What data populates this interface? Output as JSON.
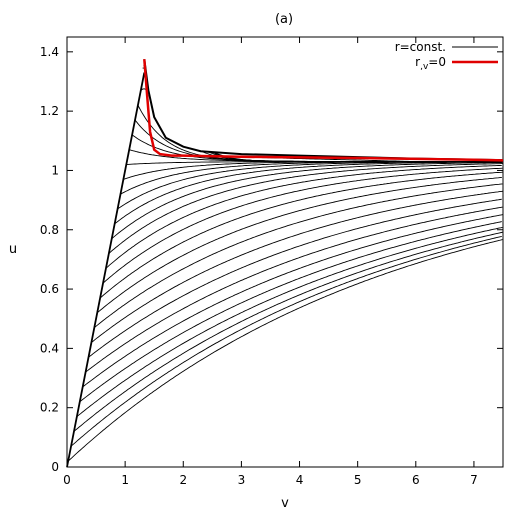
{
  "chart_data": {
    "type": "line",
    "title": "(a)",
    "xlabel": "v",
    "ylabel": "u",
    "xlim": [
      0,
      7.5
    ],
    "ylim": [
      0,
      1.45
    ],
    "xticks": [
      0,
      1,
      2,
      3,
      4,
      5,
      6,
      7
    ],
    "yticks": [
      0,
      0.2,
      0.4,
      0.6,
      0.8,
      1,
      1.2,
      1.4
    ],
    "xtick_labels": [
      "0",
      "1",
      "2",
      "3",
      "4",
      "5",
      "6",
      "7"
    ],
    "ytick_labels": [
      "0",
      "0.2",
      "0.4",
      "0.6",
      "0.8",
      "1",
      "1.2",
      "1.4"
    ],
    "grid": false,
    "legend_position": "top-right",
    "colors": {
      "rconst": "#000000",
      "rv0": "#e00000"
    },
    "series": [
      {
        "name": "r=const.",
        "description_family": "family of contour lines, each starting on the line u = v from the origin up to v ≈ 1.33 then approaching u ≈ 1.03 at large v",
        "family": {
          "start_points_v": [
            0.02,
            0.07,
            0.12,
            0.17,
            0.22,
            0.27,
            0.32,
            0.37,
            0.42,
            0.47,
            0.52,
            0.57,
            0.62,
            0.67,
            0.72,
            0.77,
            0.82,
            0.87,
            0.92,
            0.97,
            1.02,
            1.07,
            1.12,
            1.17,
            1.22,
            1.27,
            1.3,
            1.32,
            1.33
          ],
          "outer_envelope": {
            "x": [
              1.33,
              1.4,
              1.5,
              1.7,
              2.0,
              2.3,
              3.0,
              4.0,
              5.0,
              6.0,
              7.5
            ],
            "y": [
              1.375,
              1.27,
              1.18,
              1.11,
              1.08,
              1.065,
              1.055,
              1.05,
              1.045,
              1.04,
              1.035
            ]
          },
          "asymptote_u": 1.03
        }
      },
      {
        "name": "r,v=0",
        "label_main": "r",
        "label_sub": ",v",
        "label_tail": "=0",
        "x": [
          1.33,
          1.38,
          1.43,
          1.5,
          1.6,
          1.8,
          2.0,
          2.5,
          3.0,
          4.0,
          5.0,
          6.0,
          7.0,
          7.5
        ],
        "y": [
          1.375,
          1.25,
          1.13,
          1.07,
          1.055,
          1.05,
          1.05,
          1.048,
          1.046,
          1.044,
          1.042,
          1.039,
          1.036,
          1.034
        ]
      }
    ]
  }
}
